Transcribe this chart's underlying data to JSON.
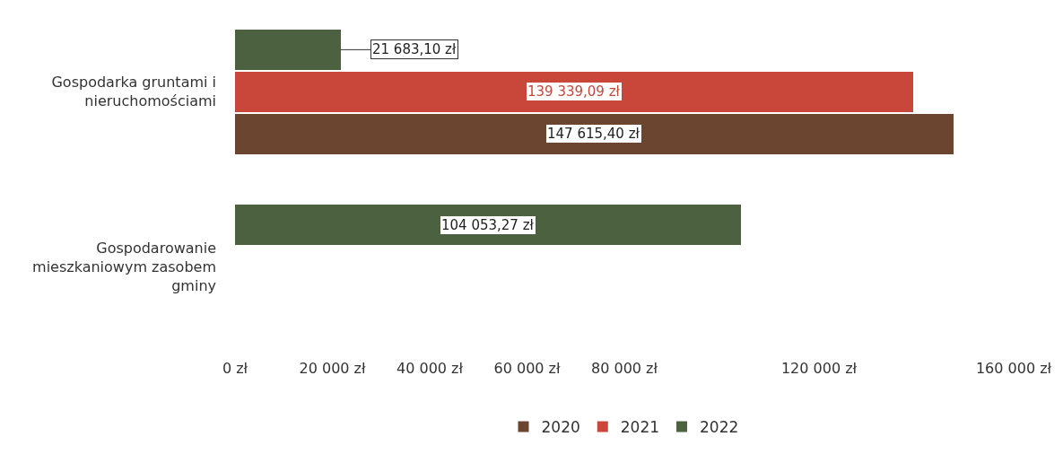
{
  "chart_data": {
    "type": "bar",
    "orientation": "horizontal",
    "categories": [
      "Gospodarka gruntami i nieruchomościami",
      "Gospodarowanie mieszkaniowym zasobem gminy"
    ],
    "series": [
      {
        "name": "2020",
        "color": "#6b4530",
        "values": [
          147615.4,
          null
        ],
        "value_labels": [
          "147 615,40 zł",
          null
        ]
      },
      {
        "name": "2021",
        "color": "#c9473a",
        "values": [
          139339.09,
          null
        ],
        "value_labels": [
          "139 339,09 zł",
          null
        ]
      },
      {
        "name": "2022",
        "color": "#4b6140",
        "values": [
          21683.1,
          104053.27
        ],
        "value_labels": [
          "21 683,10 zł",
          "104 053,27 zł"
        ]
      }
    ],
    "xlim": [
      0,
      160000
    ],
    "xticks": [
      {
        "value": 0,
        "label": "0 zł"
      },
      {
        "value": 20000,
        "label": "20 000 zł"
      },
      {
        "value": 40000,
        "label": "40 000 zł"
      },
      {
        "value": 60000,
        "label": "60 000 zł"
      },
      {
        "value": 80000,
        "label": "80 000 zł"
      },
      {
        "value": 120000,
        "label": "120 000 zł"
      },
      {
        "value": 160000,
        "label": "160 000 zł"
      }
    ],
    "legend": "bottom",
    "grid": false
  }
}
